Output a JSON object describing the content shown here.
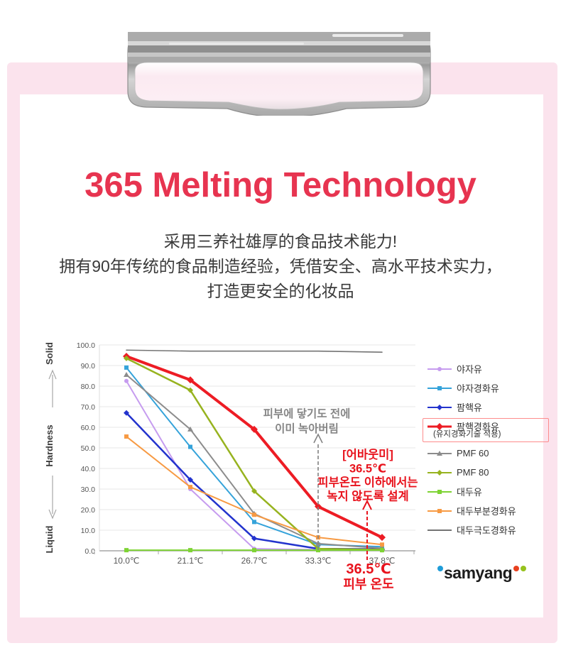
{
  "page": {
    "title": "365 Melting Technology",
    "subtitle_lines": [
      "采用三养社雄厚的食品技术能力!",
      "拥有90年传统的食品制造经验，凭借安全、高水平技术实力，",
      "打造更安全的化妆品"
    ],
    "accent_red": "#e73450",
    "background_pink": "#fbe3ed",
    "panel_white": "#ffffff"
  },
  "brand": {
    "logo_text": "samyang",
    "text_color": "#1d1d1d",
    "dot_colors": [
      "#1f9cd8",
      "#e8411f",
      "#96c21d"
    ]
  },
  "chart_data": {
    "type": "line",
    "title": "",
    "categories": [
      "10.0℃",
      "21.1℃",
      "26.7℃",
      "33.3℃",
      "37.8℃"
    ],
    "xlabel": "",
    "ylabel": "Hardness",
    "ylabel_top": "Solid",
    "ylabel_bottom": "Liquid",
    "ylim": [
      0,
      100
    ],
    "ytick_step": 10,
    "grid": true,
    "legend_position": "right",
    "series": [
      {
        "name": "야자유",
        "color": "#c69cef",
        "width": 2,
        "marker": "circle",
        "values": [
          82.5,
          30,
          1,
          0.5,
          0.3
        ]
      },
      {
        "name": "야자경화유",
        "color": "#35a3da",
        "width": 2,
        "marker": "square",
        "values": [
          89,
          50.5,
          14,
          3,
          2
        ]
      },
      {
        "name": "팜핵유",
        "color": "#2333cd",
        "width": 2.5,
        "marker": "diamond",
        "values": [
          67,
          34.5,
          6,
          1,
          0.8
        ]
      },
      {
        "name": "팜핵경화유",
        "sub": "(유지경화기술 적용)",
        "highlight": true,
        "color": "#ed1c24",
        "width": 4,
        "marker": "diamond",
        "values": [
          94.5,
          83,
          59,
          21.5,
          6.5
        ]
      },
      {
        "name": "PMF 60",
        "color": "#8c8c8c",
        "width": 2,
        "marker": "triangle",
        "values": [
          85.5,
          59,
          18,
          3.5,
          1.2
        ]
      },
      {
        "name": "PMF 80",
        "color": "#97b31f",
        "width": 2.5,
        "marker": "diamond",
        "values": [
          93.5,
          78,
          29,
          1,
          0.5
        ]
      },
      {
        "name": "대두유",
        "color": "#7ed334",
        "width": 2,
        "marker": "square",
        "values": [
          0.3,
          0.3,
          0.3,
          0.3,
          0.3
        ]
      },
      {
        "name": "대두부분경화유",
        "color": "#f79a43",
        "width": 2,
        "marker": "square",
        "values": [
          55.5,
          31,
          17.5,
          6.5,
          3
        ]
      },
      {
        "name": "대두극도경화유",
        "color": "#747474",
        "width": 1.6,
        "marker": "none",
        "values": [
          97.5,
          97,
          97,
          97,
          96.5
        ]
      }
    ],
    "annotations": {
      "gray_note": {
        "lines": [
          "피부에 닿기도 전에",
          "이미 녹아버림"
        ],
        "color": "#868686"
      },
      "red_note": {
        "lines": [
          "[어바웃미]",
          "36.5℃",
          "피부온도 이하에서는",
          "녹지 않도록 설계"
        ],
        "color": "#e8131d"
      },
      "red_axis_note": {
        "lines": [
          "36.5℃",
          "피부 온도"
        ],
        "color": "#e8131d"
      },
      "gray_arrow_at_category": "33.3℃",
      "red_arrow_temp": "36.5℃"
    }
  }
}
